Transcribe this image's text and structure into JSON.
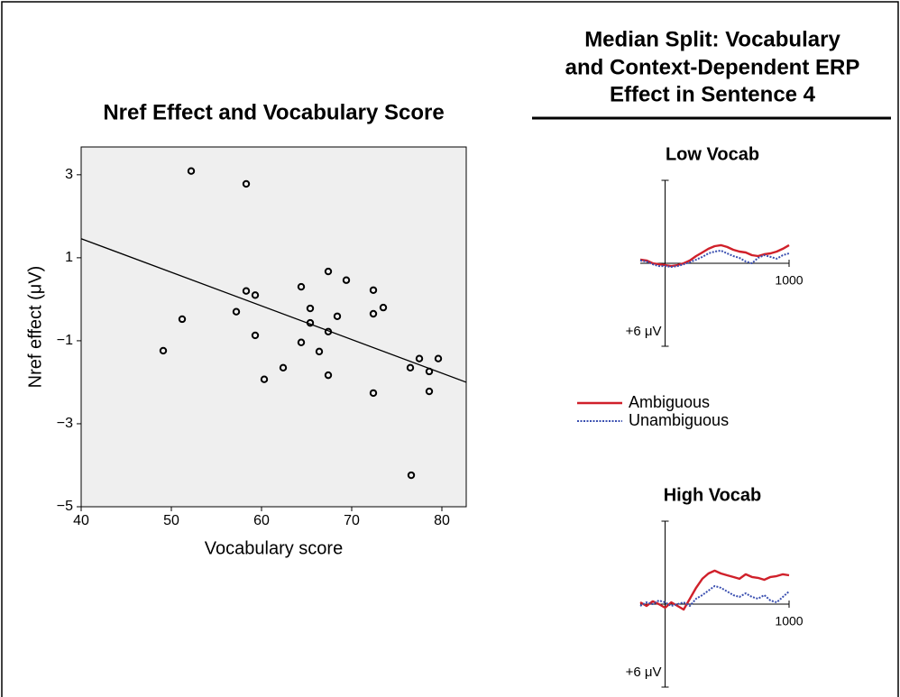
{
  "panel_title": [
    "Median Split: Vocabulary",
    "and Context-Dependent ERP",
    "Effect in Sentence 4"
  ],
  "chart_data": [
    {
      "type": "scatter",
      "title": "Nref Effect and Vocabulary Score",
      "x_label": "Vocabulary score",
      "y_label": "Nref effect (μV)",
      "x": [
        49.1,
        51.2,
        52.2,
        57.2,
        58.3,
        58.3,
        59.3,
        59.3,
        60.3,
        62.4,
        64.4,
        64.4,
        65.4,
        65.4,
        66.4,
        67.4,
        67.4,
        67.4,
        68.4,
        69.4,
        72.4,
        72.4,
        72.4,
        73.5,
        76.5,
        76.6,
        77.5,
        78.6,
        78.6,
        79.6
      ],
      "values": [
        -1.24,
        -0.48,
        3.09,
        -0.3,
        2.78,
        0.2,
        0.1,
        -0.87,
        -1.93,
        -1.65,
        0.3,
        -1.04,
        -0.22,
        -0.57,
        -1.26,
        0.67,
        -0.78,
        -1.83,
        -0.41,
        0.46,
        0.22,
        -0.35,
        -2.26,
        -0.2,
        -1.65,
        -4.24,
        -1.43,
        -1.74,
        -2.22,
        -1.43
      ],
      "fit_line": {
        "x": [
          40,
          82.7
        ],
        "y": [
          1.46,
          -2.0
        ]
      },
      "xlim": [
        40,
        82.7
      ],
      "ylim": [
        -5,
        3.67
      ],
      "xticks": [
        40,
        50,
        60,
        70,
        80
      ],
      "yticks": [
        {
          "value": 3,
          "label": "3"
        },
        {
          "value": 1,
          "label": "1"
        },
        {
          "value": -1,
          "label": "−1"
        },
        {
          "value": -3,
          "label": "−3"
        },
        {
          "value": -5,
          "label": "−5"
        }
      ],
      "color": "#000000",
      "background": "#efefef"
    },
    {
      "type": "line",
      "title": "Low Vocab",
      "x": [
        -200,
        -150,
        -100,
        -50,
        0,
        50,
        100,
        150,
        200,
        250,
        300,
        350,
        400,
        450,
        500,
        550,
        600,
        650,
        700,
        750,
        800,
        850,
        900,
        950,
        1000
      ],
      "series": [
        {
          "name": "Ambiguous",
          "color": "#d0202a",
          "line_style": "solid",
          "values": [
            -0.26,
            -0.2,
            0,
            0.07,
            0.13,
            0.2,
            0.13,
            0,
            -0.2,
            -0.52,
            -0.78,
            -1.05,
            -1.24,
            -1.31,
            -1.18,
            -0.98,
            -0.85,
            -0.78,
            -0.59,
            -0.52,
            -0.65,
            -0.72,
            -0.85,
            -1.05,
            -1.31
          ]
        },
        {
          "name": "Unambiguous",
          "color": "#3a4fb0",
          "line_style": "dotted",
          "values": [
            -0.2,
            -0.13,
            0.07,
            0.2,
            0.2,
            0.26,
            0.2,
            0.07,
            -0.07,
            -0.26,
            -0.46,
            -0.72,
            -0.85,
            -0.92,
            -0.72,
            -0.52,
            -0.39,
            -0.13,
            0,
            -0.39,
            -0.59,
            -0.46,
            -0.33,
            -0.59,
            -0.72
          ]
        }
      ],
      "xlim": [
        -200,
        1000
      ],
      "ylim": [
        -6,
        6
      ],
      "y_inverted": true,
      "xticks": [
        1000
      ],
      "yticks": [
        {
          "value": 6,
          "label": "+6 μV"
        }
      ]
    },
    {
      "type": "line",
      "title": "High Vocab",
      "x": [
        -200,
        -150,
        -100,
        -50,
        0,
        50,
        100,
        150,
        200,
        250,
        300,
        350,
        400,
        450,
        500,
        550,
        600,
        650,
        700,
        750,
        800,
        850,
        900,
        950,
        1000
      ],
      "series": [
        {
          "name": "Ambiguous",
          "color": "#d0202a",
          "line_style": "solid",
          "values": [
            -0.13,
            0.13,
            -0.2,
            0,
            0.26,
            -0.13,
            0.13,
            0.39,
            -0.39,
            -1.18,
            -1.83,
            -2.22,
            -2.42,
            -2.22,
            -2.09,
            -1.96,
            -1.83,
            -2.16,
            -1.96,
            -1.9,
            -1.76,
            -1.96,
            -2.03,
            -2.16,
            -2.09
          ]
        },
        {
          "name": "Unambiguous",
          "color": "#3a4fb0",
          "line_style": "dotted",
          "values": [
            0.13,
            -0.13,
            0,
            -0.26,
            -0.13,
            0.13,
            0,
            -0.13,
            0.13,
            -0.39,
            -0.65,
            -0.98,
            -1.31,
            -1.18,
            -0.92,
            -0.65,
            -0.52,
            -0.78,
            -0.52,
            -0.39,
            -0.65,
            -0.26,
            -0.13,
            -0.52,
            -0.92
          ]
        }
      ],
      "xlim": [
        -200,
        1000
      ],
      "ylim": [
        -6,
        6
      ],
      "y_inverted": true,
      "xticks": [
        1000
      ],
      "yticks": [
        {
          "value": 6,
          "label": "+6 μV"
        }
      ]
    }
  ]
}
